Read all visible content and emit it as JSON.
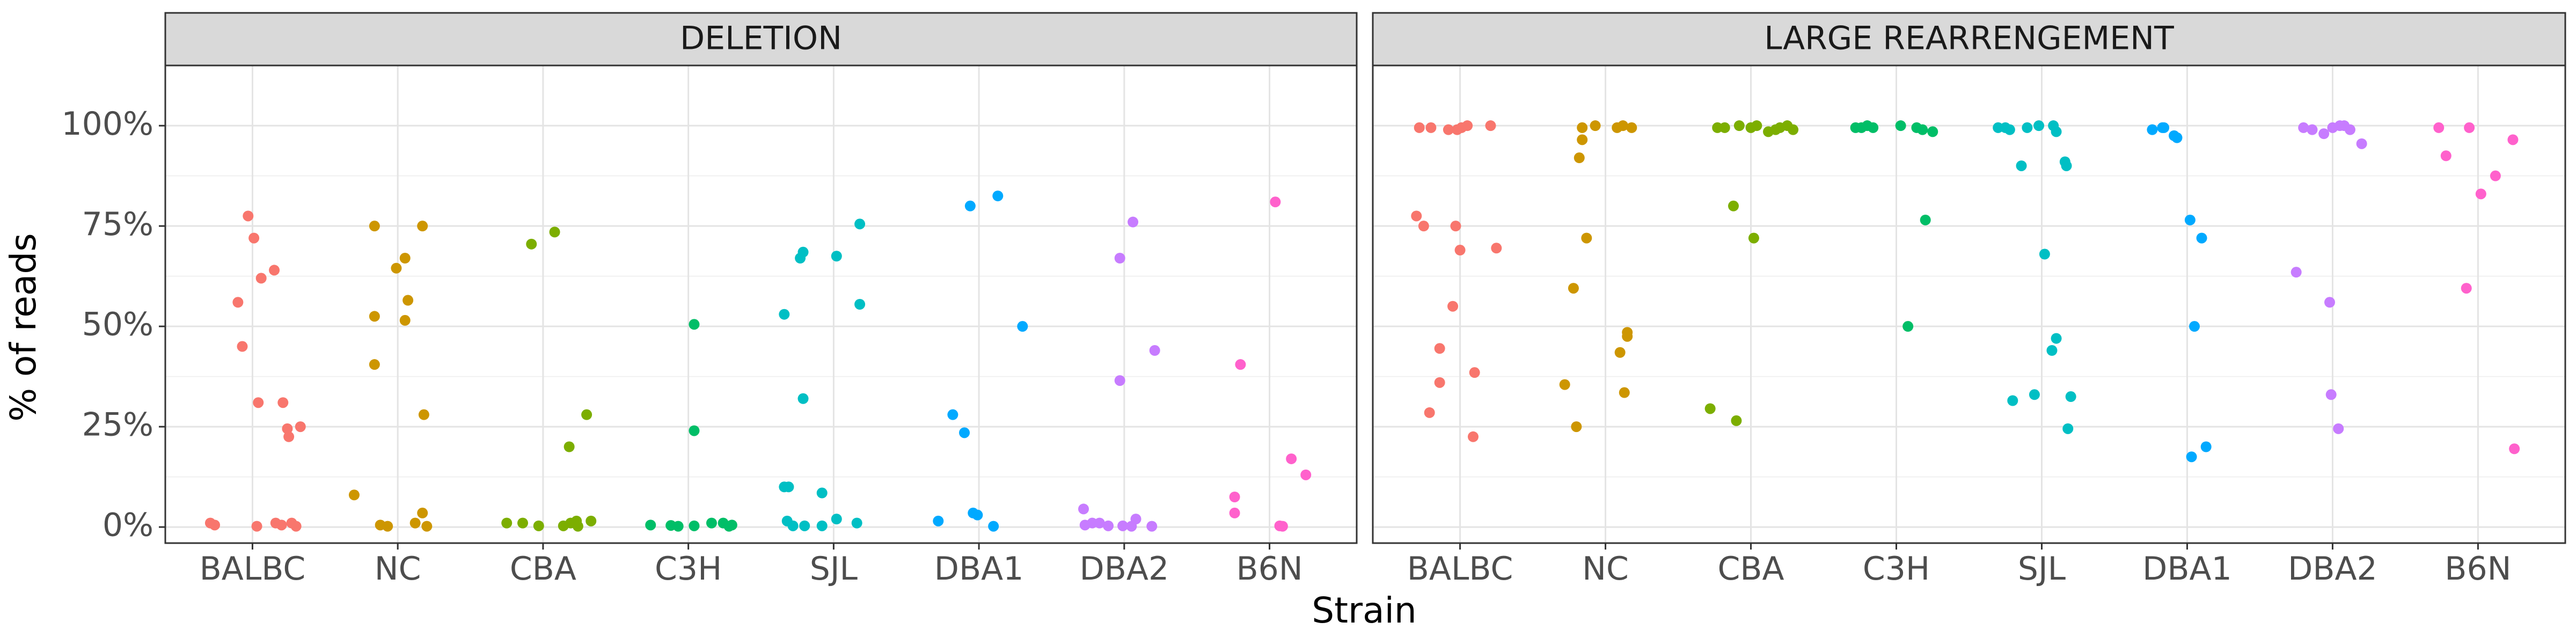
{
  "chart_data": {
    "type": "scatter",
    "xlabel": "Strain",
    "ylabel": "% of reads",
    "categories": [
      "BALBC",
      "NC",
      "CBA",
      "C3H",
      "SJL",
      "DBA1",
      "DBA2",
      "B6N"
    ],
    "colors": {
      "BALBC": "#F8766D",
      "NC": "#CD9600",
      "CBA": "#7CAE00",
      "C3H": "#00BE67",
      "SJL": "#00BFC4",
      "DBA1": "#00A9FF",
      "DBA2": "#C77CFF",
      "B6N": "#FF61CC"
    },
    "ylim": [
      -4,
      115
    ],
    "yticks": [
      0,
      25,
      50,
      75,
      100
    ],
    "ytick_labels": [
      "0%",
      "25%",
      "50%",
      "75%",
      "100%"
    ],
    "grid": true,
    "panels": [
      {
        "title": "DELETION",
        "points": [
          {
            "x": 0.71,
            "y": 1
          },
          {
            "x": 0.74,
            "y": 0.5
          },
          {
            "x": 0.9,
            "y": 56
          },
          {
            "x": 0.93,
            "y": 45
          },
          {
            "x": 0.97,
            "y": 77.5
          },
          {
            "x": 1.01,
            "y": 72
          },
          {
            "x": 1.04,
            "y": 31
          },
          {
            "x": 1.06,
            "y": 62
          },
          {
            "x": 1.03,
            "y": 0.2
          },
          {
            "x": 1.15,
            "y": 64
          },
          {
            "x": 1.16,
            "y": 1
          },
          {
            "x": 1.2,
            "y": 0.5
          },
          {
            "x": 1.21,
            "y": 31
          },
          {
            "x": 1.24,
            "y": 24.5
          },
          {
            "x": 1.25,
            "y": 22.5
          },
          {
            "x": 1.27,
            "y": 1
          },
          {
            "x": 1.3,
            "y": 0.2
          },
          {
            "x": 1.33,
            "y": 25
          },
          {
            "x": 1.7,
            "y": 8
          },
          {
            "x": 1.84,
            "y": 75
          },
          {
            "x": 1.84,
            "y": 52.5
          },
          {
            "x": 1.84,
            "y": 40.5
          },
          {
            "x": 1.88,
            "y": 0.5
          },
          {
            "x": 1.93,
            "y": 0.2
          },
          {
            "x": 1.99,
            "y": 64.5
          },
          {
            "x": 2.05,
            "y": 67
          },
          {
            "x": 2.05,
            "y": 51.5
          },
          {
            "x": 2.07,
            "y": 56.5
          },
          {
            "x": 2.12,
            "y": 1
          },
          {
            "x": 2.17,
            "y": 75
          },
          {
            "x": 2.18,
            "y": 28
          },
          {
            "x": 2.17,
            "y": 3.5
          },
          {
            "x": 2.2,
            "y": 0.2
          },
          {
            "x": 2.75,
            "y": 1
          },
          {
            "x": 2.86,
            "y": 1
          },
          {
            "x": 2.92,
            "y": 70.5
          },
          {
            "x": 2.97,
            "y": 0.3
          },
          {
            "x": 3.08,
            "y": 73.5
          },
          {
            "x": 3.14,
            "y": 0.3
          },
          {
            "x": 3.18,
            "y": 20
          },
          {
            "x": 3.19,
            "y": 1
          },
          {
            "x": 3.23,
            "y": 1.5
          },
          {
            "x": 3.24,
            "y": 0.2
          },
          {
            "x": 3.3,
            "y": 28
          },
          {
            "x": 3.33,
            "y": 1.5
          },
          {
            "x": 3.74,
            "y": 0.5
          },
          {
            "x": 3.88,
            "y": 0.4
          },
          {
            "x": 3.93,
            "y": 0.2
          },
          {
            "x": 4.04,
            "y": 50.5
          },
          {
            "x": 4.04,
            "y": 24
          },
          {
            "x": 4.04,
            "y": 0.3
          },
          {
            "x": 4.16,
            "y": 1
          },
          {
            "x": 4.24,
            "y": 1
          },
          {
            "x": 4.28,
            "y": 0.2
          },
          {
            "x": 4.3,
            "y": 0.5
          },
          {
            "x": 4.66,
            "y": 53
          },
          {
            "x": 4.66,
            "y": 10
          },
          {
            "x": 4.69,
            "y": 10
          },
          {
            "x": 4.68,
            "y": 1.5
          },
          {
            "x": 4.72,
            "y": 0.3
          },
          {
            "x": 4.77,
            "y": 67
          },
          {
            "x": 4.79,
            "y": 68.5
          },
          {
            "x": 4.79,
            "y": 32
          },
          {
            "x": 4.8,
            "y": 0.3
          },
          {
            "x": 4.92,
            "y": 0.3
          },
          {
            "x": 4.92,
            "y": 8.5
          },
          {
            "x": 5.02,
            "y": 67.5
          },
          {
            "x": 5.02,
            "y": 2
          },
          {
            "x": 5.18,
            "y": 75.5
          },
          {
            "x": 5.18,
            "y": 55.5
          },
          {
            "x": 5.16,
            "y": 1
          },
          {
            "x": 5.72,
            "y": 1.5
          },
          {
            "x": 5.82,
            "y": 28
          },
          {
            "x": 5.9,
            "y": 23.5
          },
          {
            "x": 5.94,
            "y": 80
          },
          {
            "x": 5.96,
            "y": 3.5
          },
          {
            "x": 5.99,
            "y": 3
          },
          {
            "x": 6.1,
            "y": 0.2
          },
          {
            "x": 6.13,
            "y": 82.5
          },
          {
            "x": 6.3,
            "y": 50
          },
          {
            "x": 6.72,
            "y": 4.5
          },
          {
            "x": 6.73,
            "y": 0.5
          },
          {
            "x": 6.78,
            "y": 1
          },
          {
            "x": 6.83,
            "y": 1
          },
          {
            "x": 6.89,
            "y": 0.3
          },
          {
            "x": 6.97,
            "y": 67
          },
          {
            "x": 6.97,
            "y": 36.5
          },
          {
            "x": 6.99,
            "y": 0.3
          },
          {
            "x": 7.05,
            "y": 0.2
          },
          {
            "x": 7.06,
            "y": 76
          },
          {
            "x": 7.08,
            "y": 2
          },
          {
            "x": 7.21,
            "y": 44
          },
          {
            "x": 7.19,
            "y": 0.2
          },
          {
            "x": 7.76,
            "y": 7.5
          },
          {
            "x": 7.76,
            "y": 3.5
          },
          {
            "x": 7.8,
            "y": 40.5
          },
          {
            "x": 8.04,
            "y": 81
          },
          {
            "x": 8.07,
            "y": 0.3
          },
          {
            "x": 8.09,
            "y": 0.2
          },
          {
            "x": 8.15,
            "y": 17
          },
          {
            "x": 8.25,
            "y": 13
          }
        ]
      },
      {
        "title": "LARGE REARRENGEMENT",
        "points": [
          {
            "x": 0.7,
            "y": 77.5
          },
          {
            "x": 0.72,
            "y": 99.5
          },
          {
            "x": 0.75,
            "y": 75
          },
          {
            "x": 0.79,
            "y": 28.5
          },
          {
            "x": 0.8,
            "y": 99.5
          },
          {
            "x": 0.86,
            "y": 36
          },
          {
            "x": 0.86,
            "y": 44.5
          },
          {
            "x": 0.92,
            "y": 99
          },
          {
            "x": 0.95,
            "y": 55
          },
          {
            "x": 0.97,
            "y": 75
          },
          {
            "x": 1.0,
            "y": 69
          },
          {
            "x": 1.01,
            "y": 99.5
          },
          {
            "x": 1.05,
            "y": 100
          },
          {
            "x": 1.09,
            "y": 22.5
          },
          {
            "x": 1.1,
            "y": 38.5
          },
          {
            "x": 1.21,
            "y": 100
          },
          {
            "x": 1.25,
            "y": 69.5
          },
          {
            "x": 0.98,
            "y": 99
          },
          {
            "x": 1.72,
            "y": 35.5
          },
          {
            "x": 1.78,
            "y": 59.5
          },
          {
            "x": 1.8,
            "y": 25
          },
          {
            "x": 1.82,
            "y": 92
          },
          {
            "x": 1.84,
            "y": 96.5
          },
          {
            "x": 1.87,
            "y": 72
          },
          {
            "x": 1.84,
            "y": 99.5
          },
          {
            "x": 1.93,
            "y": 100
          },
          {
            "x": 2.08,
            "y": 99.5
          },
          {
            "x": 2.1,
            "y": 43.5
          },
          {
            "x": 2.13,
            "y": 33.5
          },
          {
            "x": 2.15,
            "y": 48.5
          },
          {
            "x": 2.15,
            "y": 47.5
          },
          {
            "x": 2.18,
            "y": 99.5
          },
          {
            "x": 2.12,
            "y": 100
          },
          {
            "x": 2.72,
            "y": 29.5
          },
          {
            "x": 2.77,
            "y": 99.5
          },
          {
            "x": 2.82,
            "y": 99.5
          },
          {
            "x": 2.88,
            "y": 80
          },
          {
            "x": 2.9,
            "y": 26.5
          },
          {
            "x": 2.92,
            "y": 100
          },
          {
            "x": 3.02,
            "y": 72
          },
          {
            "x": 3.04,
            "y": 100
          },
          {
            "x": 3.12,
            "y": 98.5
          },
          {
            "x": 3.17,
            "y": 99
          },
          {
            "x": 3.2,
            "y": 99.5
          },
          {
            "x": 3.25,
            "y": 100
          },
          {
            "x": 3.29,
            "y": 99
          },
          {
            "x": 3.0,
            "y": 99.5
          },
          {
            "x": 3.72,
            "y": 99.5
          },
          {
            "x": 3.76,
            "y": 99.5
          },
          {
            "x": 3.8,
            "y": 100
          },
          {
            "x": 3.84,
            "y": 99.5
          },
          {
            "x": 4.03,
            "y": 100
          },
          {
            "x": 4.08,
            "y": 50
          },
          {
            "x": 4.14,
            "y": 99.5
          },
          {
            "x": 4.18,
            "y": 99
          },
          {
            "x": 4.2,
            "y": 76.5
          },
          {
            "x": 4.25,
            "y": 98.5
          },
          {
            "x": 4.7,
            "y": 99.5
          },
          {
            "x": 4.75,
            "y": 99.5
          },
          {
            "x": 4.78,
            "y": 99
          },
          {
            "x": 4.8,
            "y": 31.5
          },
          {
            "x": 4.86,
            "y": 90
          },
          {
            "x": 4.9,
            "y": 99.5
          },
          {
            "x": 4.95,
            "y": 33
          },
          {
            "x": 4.98,
            "y": 100
          },
          {
            "x": 5.02,
            "y": 68
          },
          {
            "x": 5.07,
            "y": 44
          },
          {
            "x": 5.1,
            "y": 47
          },
          {
            "x": 5.1,
            "y": 98.5
          },
          {
            "x": 5.08,
            "y": 100
          },
          {
            "x": 5.16,
            "y": 91
          },
          {
            "x": 5.17,
            "y": 90
          },
          {
            "x": 5.2,
            "y": 32.5
          },
          {
            "x": 5.18,
            "y": 24.5
          },
          {
            "x": 5.76,
            "y": 99
          },
          {
            "x": 5.83,
            "y": 99.5
          },
          {
            "x": 5.84,
            "y": 99.5
          },
          {
            "x": 5.91,
            "y": 97.5
          },
          {
            "x": 5.93,
            "y": 97
          },
          {
            "x": 6.02,
            "y": 76.5
          },
          {
            "x": 6.03,
            "y": 17.5
          },
          {
            "x": 6.05,
            "y": 50
          },
          {
            "x": 6.1,
            "y": 72
          },
          {
            "x": 6.13,
            "y": 20
          },
          {
            "x": 6.75,
            "y": 63.5
          },
          {
            "x": 6.8,
            "y": 99.5
          },
          {
            "x": 6.86,
            "y": 99
          },
          {
            "x": 6.94,
            "y": 98
          },
          {
            "x": 6.98,
            "y": 56
          },
          {
            "x": 6.99,
            "y": 33
          },
          {
            "x": 7.0,
            "y": 99.5
          },
          {
            "x": 7.04,
            "y": 24.5
          },
          {
            "x": 7.05,
            "y": 100
          },
          {
            "x": 7.08,
            "y": 100
          },
          {
            "x": 7.12,
            "y": 99
          },
          {
            "x": 7.2,
            "y": 95.5
          },
          {
            "x": 7.73,
            "y": 99.5
          },
          {
            "x": 7.78,
            "y": 92.5
          },
          {
            "x": 7.92,
            "y": 59.5
          },
          {
            "x": 7.94,
            "y": 99.5
          },
          {
            "x": 8.02,
            "y": 83
          },
          {
            "x": 8.12,
            "y": 87.5
          },
          {
            "x": 8.24,
            "y": 96.5
          },
          {
            "x": 8.25,
            "y": 19.5
          }
        ]
      }
    ]
  }
}
